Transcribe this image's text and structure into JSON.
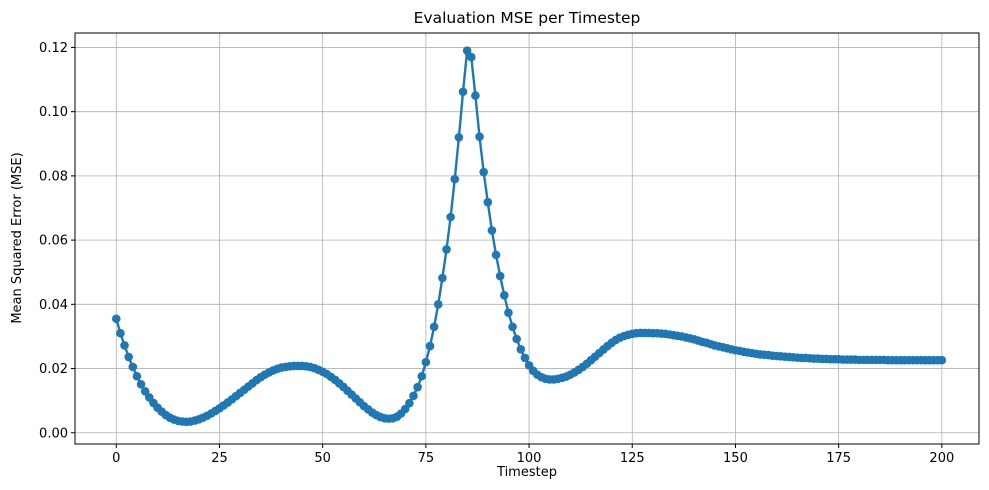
{
  "chart_data": {
    "type": "line",
    "title": "Evaluation MSE per Timestep",
    "xlabel": "Timestep",
    "ylabel": "Mean Squared Error (MSE)",
    "xlim": [
      -10,
      209
    ],
    "ylim": [
      -0.0035,
      0.1245
    ],
    "xticks": [
      0,
      25,
      50,
      75,
      100,
      125,
      150,
      175,
      200
    ],
    "yticks": [
      0.0,
      0.02,
      0.04,
      0.06,
      0.08,
      0.1,
      0.12
    ],
    "ytick_labels": [
      "0.00",
      "0.02",
      "0.04",
      "0.06",
      "0.08",
      "0.10",
      "0.12"
    ],
    "grid": true,
    "legend": "none",
    "series_color": "#1f77b4",
    "marker": "circle",
    "series": [
      {
        "x_start": 0,
        "x_step": 1,
        "values": [
          0.0355,
          0.031,
          0.0272,
          0.0236,
          0.0205,
          0.0176,
          0.0151,
          0.0129,
          0.011,
          0.0093,
          0.0078,
          0.0066,
          0.0055,
          0.0047,
          0.0041,
          0.0037,
          0.0035,
          0.0034,
          0.0035,
          0.0038,
          0.0042,
          0.0047,
          0.0053,
          0.006,
          0.0068,
          0.0076,
          0.0085,
          0.0094,
          0.0104,
          0.0114,
          0.0124,
          0.0134,
          0.0144,
          0.0154,
          0.0164,
          0.0173,
          0.0181,
          0.0188,
          0.0194,
          0.0199,
          0.0203,
          0.0205,
          0.0207,
          0.0208,
          0.0208,
          0.0208,
          0.0207,
          0.0205,
          0.0201,
          0.0196,
          0.019,
          0.0183,
          0.0174,
          0.0165,
          0.0154,
          0.0143,
          0.0131,
          0.0119,
          0.0107,
          0.0095,
          0.0083,
          0.0073,
          0.0063,
          0.0055,
          0.0049,
          0.0045,
          0.0044,
          0.0045,
          0.005,
          0.006,
          0.0074,
          0.0092,
          0.0115,
          0.0142,
          0.0176,
          0.022,
          0.027,
          0.033,
          0.04,
          0.0482,
          0.0571,
          0.0672,
          0.079,
          0.092,
          0.1062,
          0.119,
          0.117,
          0.105,
          0.0922,
          0.0812,
          0.0718,
          0.063,
          0.0554,
          0.0488,
          0.0428,
          0.0374,
          0.033,
          0.0292,
          0.026,
          0.0233,
          0.021,
          0.0193,
          0.0181,
          0.0173,
          0.0168,
          0.0166,
          0.0166,
          0.0168,
          0.0171,
          0.0175,
          0.0181,
          0.0188,
          0.0196,
          0.0205,
          0.0215,
          0.0226,
          0.0237,
          0.0248,
          0.0259,
          0.027,
          0.028,
          0.0289,
          0.0296,
          0.0301,
          0.0305,
          0.0308,
          0.031,
          0.0311,
          0.0311,
          0.0311,
          0.031,
          0.031,
          0.0309,
          0.0308,
          0.0306,
          0.0304,
          0.0302,
          0.03,
          0.0297,
          0.0294,
          0.0291,
          0.0287,
          0.0283,
          0.028,
          0.0276,
          0.0272,
          0.0269,
          0.0266,
          0.0263,
          0.026,
          0.0257,
          0.0255,
          0.0252,
          0.025,
          0.0248,
          0.0246,
          0.0244,
          0.0243,
          0.0242,
          0.024,
          0.0239,
          0.0238,
          0.0237,
          0.0236,
          0.0235,
          0.0234,
          0.0233,
          0.0233,
          0.0232,
          0.0231,
          0.0231,
          0.023,
          0.023,
          0.0229,
          0.0229,
          0.0229,
          0.0228,
          0.0228,
          0.0228,
          0.0228,
          0.0227,
          0.0227,
          0.0227,
          0.0227,
          0.0227,
          0.0227,
          0.0227,
          0.0226,
          0.0226,
          0.0226,
          0.0226,
          0.0226,
          0.0226,
          0.0226,
          0.0226,
          0.0226,
          0.0226,
          0.0226,
          0.0226,
          0.0226,
          0.0226
        ]
      }
    ]
  }
}
